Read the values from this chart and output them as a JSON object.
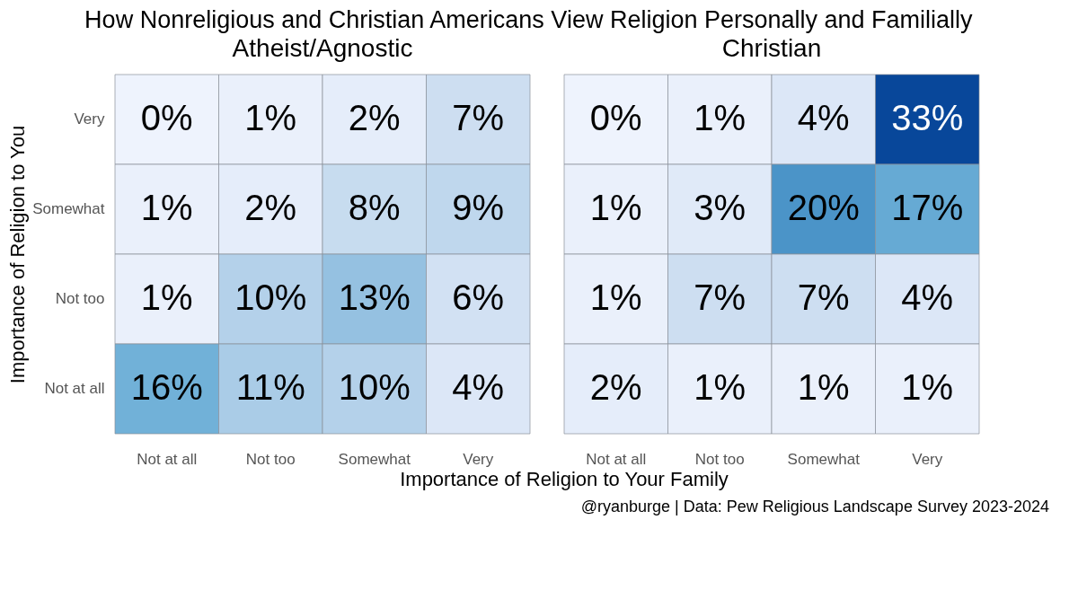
{
  "chart_data": [
    {
      "type": "heatmap",
      "title": "How Nonreligious and Christian Americans View Religion Personally and Familially",
      "subtitle": "Atheist/Agnostic",
      "xlabel": "Importance of Religion to Your Family",
      "ylabel": "Importance of Religion to You",
      "categories": [
        "Not at all",
        "Not too",
        "Somewhat",
        "Very"
      ],
      "y_categories": [
        "Very",
        "Somewhat",
        "Not too",
        "Not at all"
      ],
      "cells": [
        [
          0,
          1,
          2,
          7
        ],
        [
          1,
          2,
          8,
          9
        ],
        [
          1,
          10,
          13,
          6
        ],
        [
          16,
          11,
          10,
          4
        ]
      ],
      "cell_labels": [
        [
          "0%",
          "1%",
          "2%",
          "7%"
        ],
        [
          "1%",
          "2%",
          "8%",
          "9%"
        ],
        [
          "1%",
          "10%",
          "13%",
          "6%"
        ],
        [
          "16%",
          "11%",
          "10%",
          "4%"
        ]
      ]
    },
    {
      "type": "heatmap",
      "subtitle": "Christian",
      "annotations": [
        "@ryanburge | Data: Pew Religious Landscape Survey 2023-2024"
      ],
      "categories": [
        "Not at all",
        "Not too",
        "Somewhat",
        "Very"
      ],
      "y_categories": [
        null,
        null,
        null,
        null
      ],
      "cells": [
        [
          0,
          1,
          4,
          33
        ],
        [
          1,
          3,
          20,
          17
        ],
        [
          1,
          7,
          7,
          4
        ],
        [
          2,
          1,
          1,
          1
        ]
      ],
      "cell_labels": [
        [
          "0%",
          "1%",
          "4%",
          "33%"
        ],
        [
          "1%",
          "3%",
          "20%",
          "17%"
        ],
        [
          "1%",
          "7%",
          "7%",
          "4%"
        ],
        [
          "2%",
          "1%",
          "1%",
          "1%"
        ]
      ],
      "tick_labels": "x"
    }
  ]
}
